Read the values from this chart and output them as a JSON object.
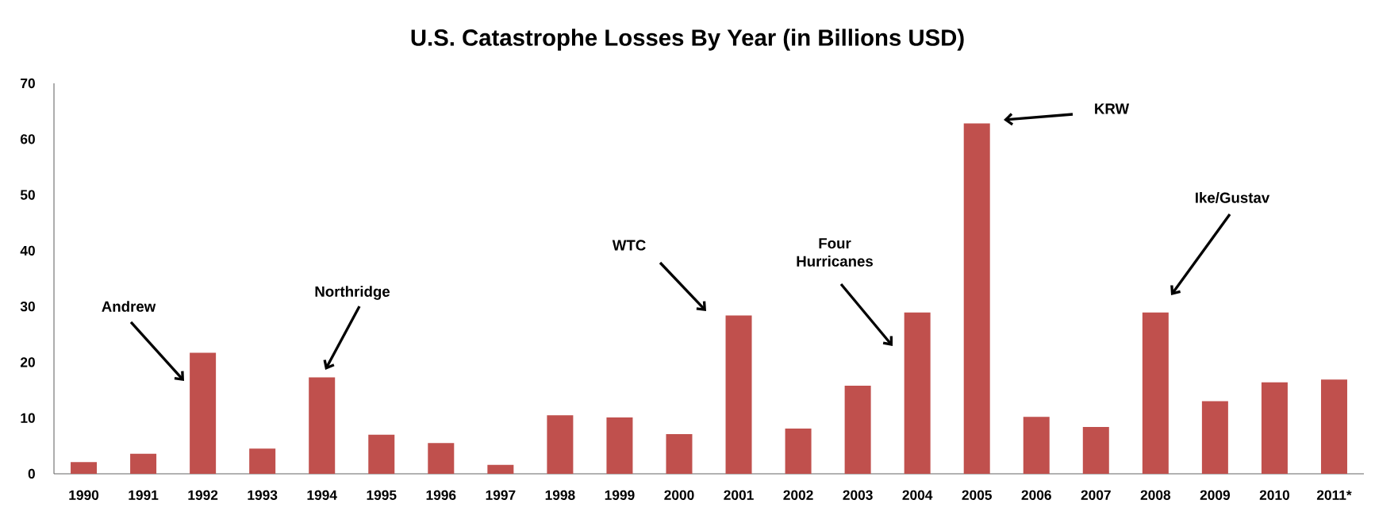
{
  "chart_data": {
    "type": "bar",
    "title": "U.S. Catastrophe Losses By Year (in Billions USD)",
    "categories": [
      "1990",
      "1991",
      "1992",
      "1993",
      "1994",
      "1995",
      "1996",
      "1997",
      "1998",
      "1999",
      "2000",
      "2001",
      "2002",
      "2003",
      "2004",
      "2005",
      "2006",
      "2007",
      "2008",
      "2009",
      "2010",
      "2011*"
    ],
    "values": [
      2.1,
      3.6,
      21.7,
      4.5,
      17.3,
      7.0,
      5.5,
      1.6,
      10.5,
      10.1,
      7.1,
      28.4,
      8.1,
      15.8,
      28.9,
      62.8,
      10.2,
      8.4,
      28.9,
      13.0,
      16.4,
      16.9
    ],
    "color": "#c0504d",
    "ylim": [
      0,
      70
    ],
    "yticks": [
      0,
      10,
      20,
      30,
      40,
      50,
      60,
      70
    ],
    "grid": false,
    "annotations": [
      "Andrew",
      "Northridge",
      "WTC",
      "Four Hurricanes",
      "KRW",
      "Ike/Gustav"
    ]
  }
}
